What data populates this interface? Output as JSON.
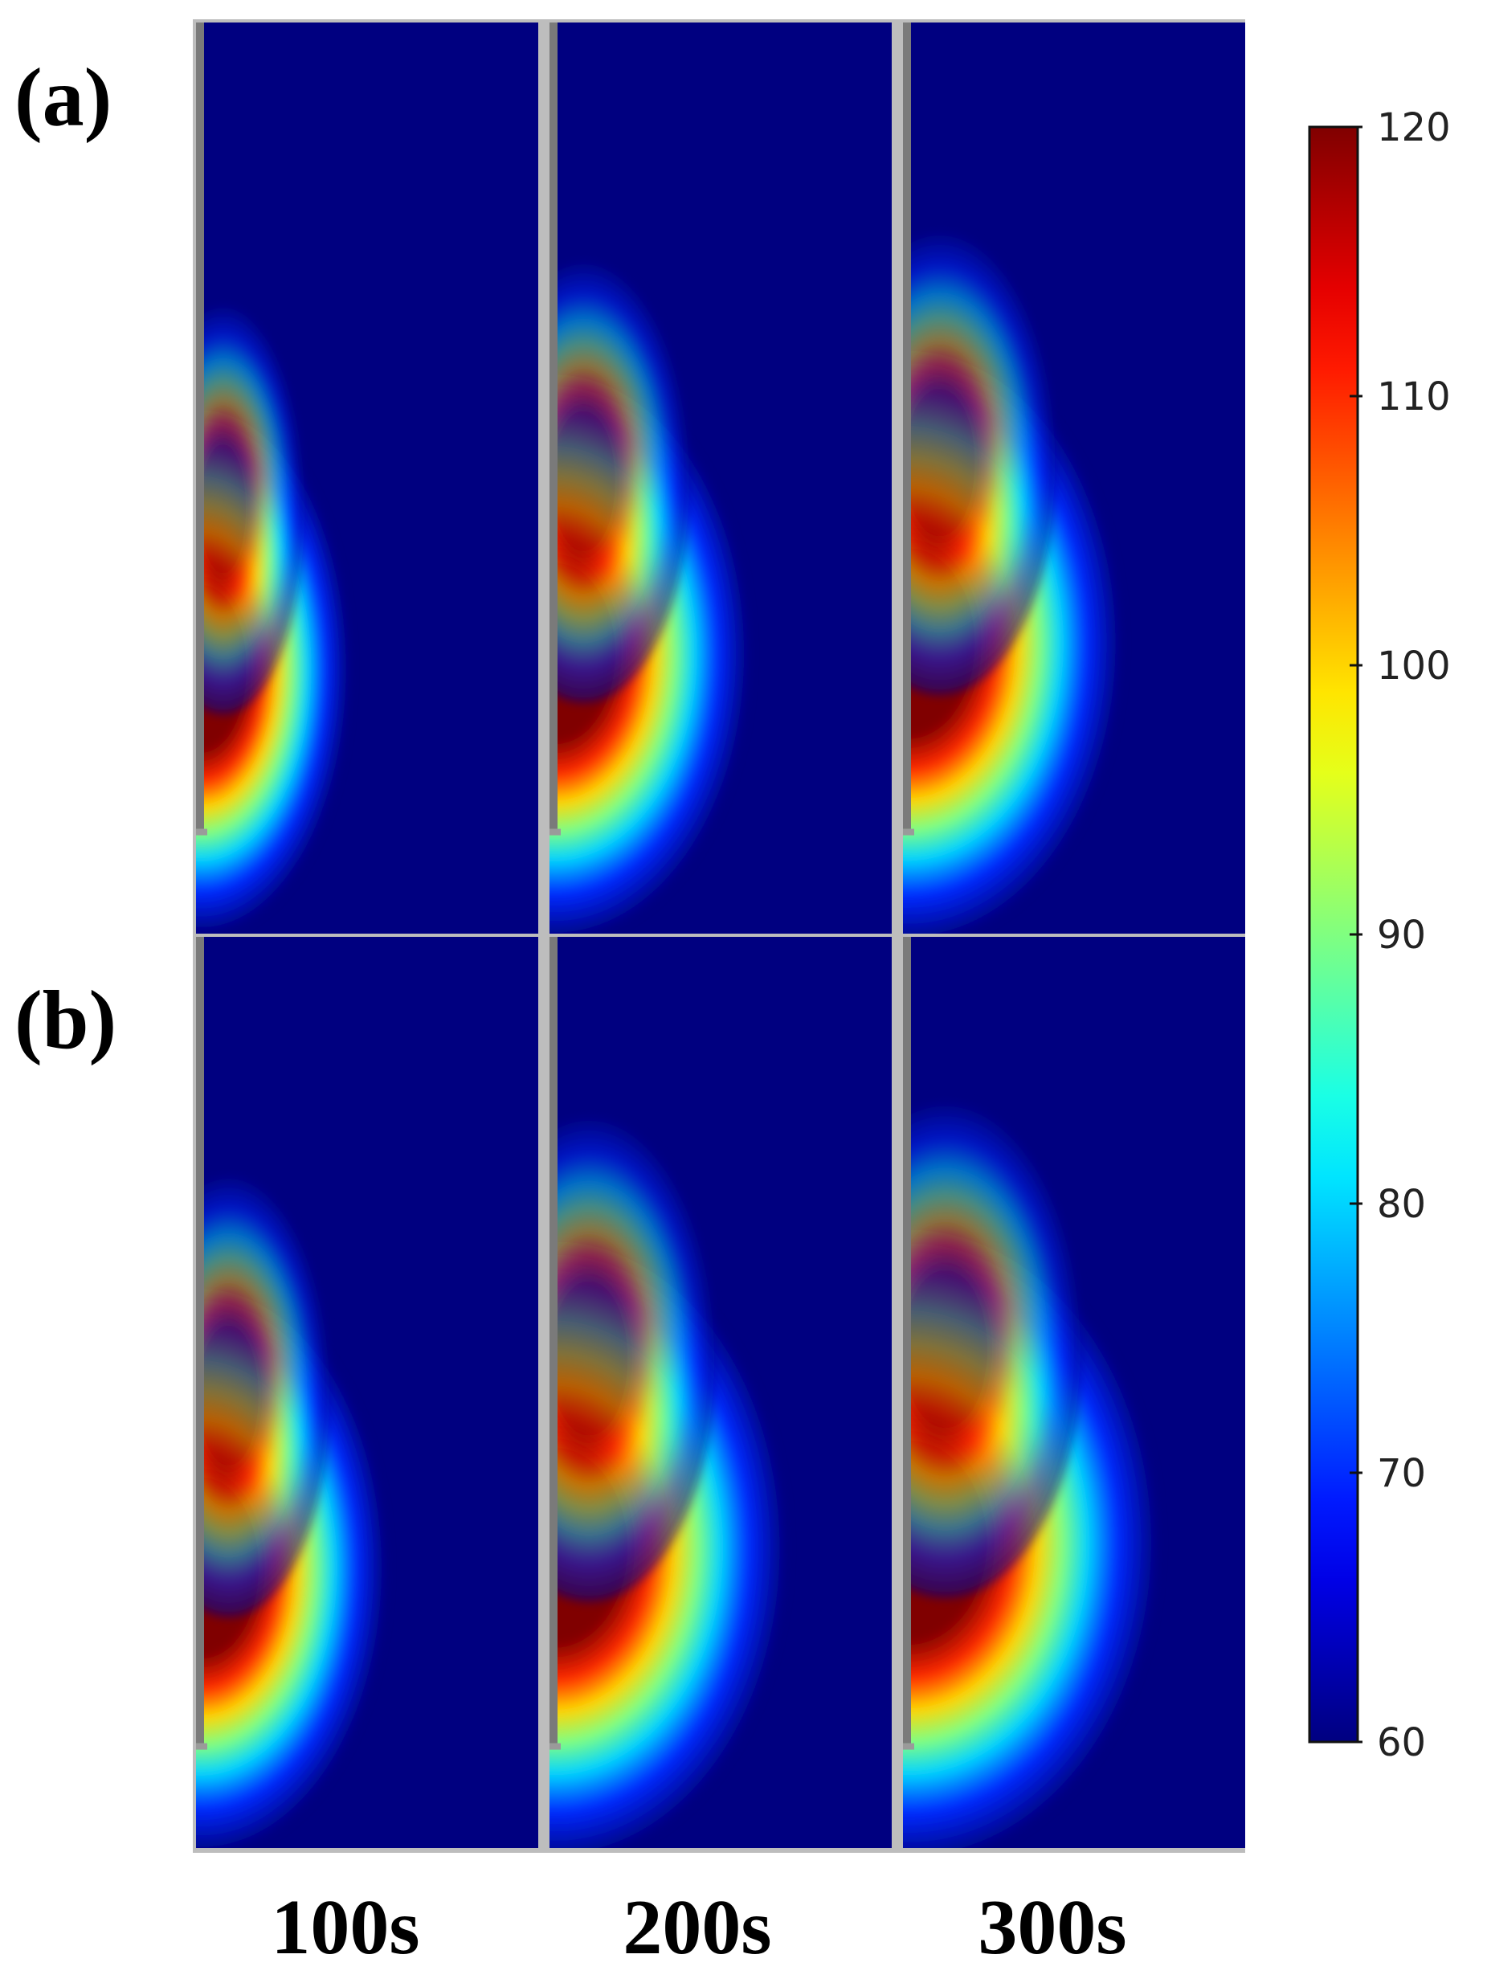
{
  "panels": [
    {
      "label": "(a)",
      "row": 0
    },
    {
      "label": "(b)",
      "row": 1
    }
  ],
  "time_labels": [
    "100s",
    "200s",
    "300s"
  ],
  "chart_data": {
    "type": "heatmap",
    "title": "",
    "rows": [
      "(a)",
      "(b)"
    ],
    "columns": [
      "100s",
      "200s",
      "300s"
    ],
    "colormap": "jet",
    "colorbar": {
      "min": 60,
      "max": 120,
      "ticks": [
        60,
        70,
        80,
        90,
        100,
        110,
        120
      ],
      "tick_labels": [
        "60",
        "70",
        "80",
        "90",
        "100",
        "110",
        "120"
      ]
    },
    "background_value": 60,
    "hot_region": [
      {
        "row": "(a)",
        "time": "100s",
        "peak_value": 120,
        "relative_length": 0.76,
        "relative_width": 0.32
      },
      {
        "row": "(a)",
        "time": "200s",
        "peak_value": 120,
        "relative_length": 0.82,
        "relative_width": 0.42
      },
      {
        "row": "(a)",
        "time": "300s",
        "peak_value": 120,
        "relative_length": 0.86,
        "relative_width": 0.46
      },
      {
        "row": "(b)",
        "time": "100s",
        "peak_value": 120,
        "relative_length": 0.82,
        "relative_width": 0.4
      },
      {
        "row": "(b)",
        "time": "200s",
        "peak_value": 120,
        "relative_length": 0.9,
        "relative_width": 0.5
      },
      {
        "row": "(b)",
        "time": "300s",
        "peak_value": 120,
        "relative_length": 0.92,
        "relative_width": 0.54
      }
    ]
  }
}
